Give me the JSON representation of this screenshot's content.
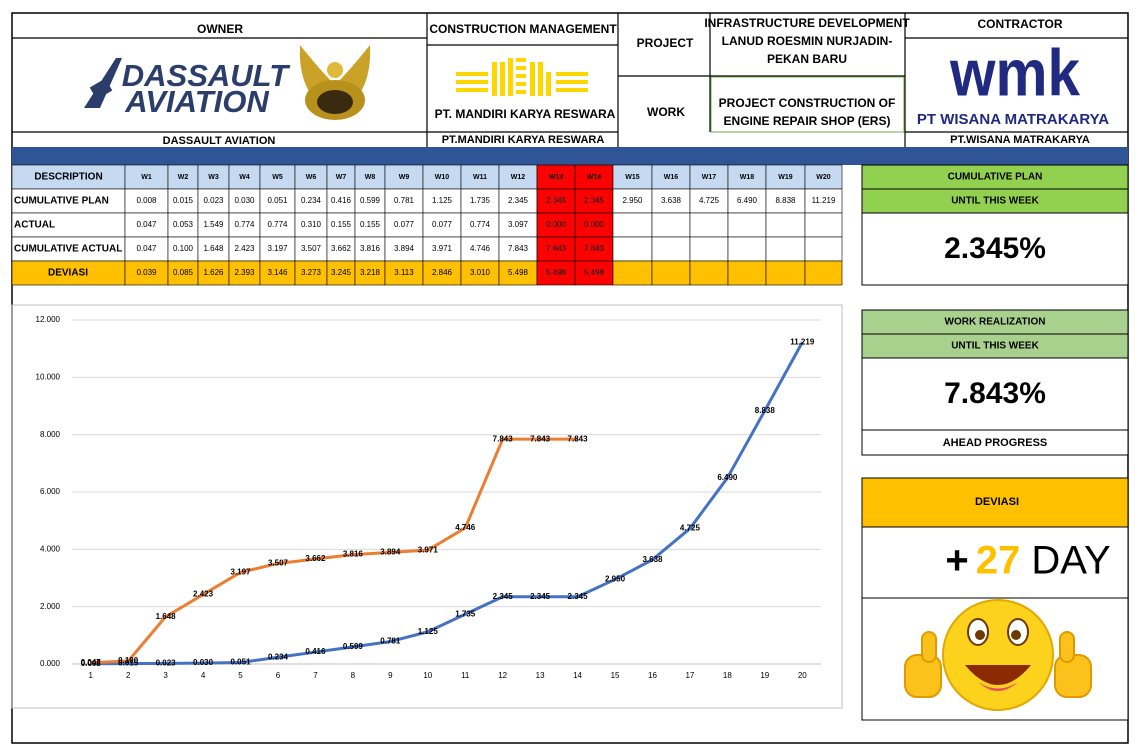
{
  "header": {
    "owner": "OWNER",
    "owner_logo": [
      "DASSAULT",
      "AVIATION"
    ],
    "owner_name": "DASSAULT AVIATION",
    "cm": "CONSTRUCTION MANAGEMENT",
    "cm_logo": "PT. MANDIRI KARYA RESWARA",
    "cm_name": "PT.MANDIRI KARYA RESWARA",
    "project_label": "PROJECT",
    "project": [
      "INFRASTRUCTURE DEVELOPMENT",
      "LANUD ROESMIN NURJADIN-",
      "PEKAN BARU"
    ],
    "work_label": "WORK",
    "work": [
      "PROJECT CONSTRUCTION OF",
      "ENGINE REPAIR SHOP (ERS)"
    ],
    "contractor": "CONTRACTOR",
    "contractor_logo": "wmk",
    "contractor_logo_name": "PT WISANA MATRAKARYA",
    "contractor_name": "PT.WISANA MATRAKARYA"
  },
  "table": {
    "columns": [
      "DESCRIPTION",
      "W1",
      "W2",
      "W3",
      "W4",
      "W5",
      "W6",
      "W7",
      "W8",
      "W9",
      "W10",
      "W11",
      "W12",
      "W13",
      "W14",
      "W15",
      "W16",
      "W17",
      "W18",
      "W19",
      "W20"
    ],
    "rows": [
      [
        "CUMULATIVE PLAN",
        "0.008",
        "0.015",
        "0.023",
        "0.030",
        "0.051",
        "0.234",
        "0.416",
        "0.599",
        "0.781",
        "1.125",
        "1.735",
        "2.345",
        "2.345",
        "2.345",
        "2.950",
        "3.638",
        "4.725",
        "6.490",
        "8.838",
        "11.219"
      ],
      [
        "ACTUAL",
        "0.047",
        "0.053",
        "1.549",
        "0.774",
        "0.774",
        "0.310",
        "0.155",
        "0.155",
        "0.077",
        "0.077",
        "0.774",
        "3.097",
        "0.000",
        "0.000"
      ],
      [
        "CUMULATIVE ACTUAL",
        "0.047",
        "0.100",
        "1.648",
        "2.423",
        "3.197",
        "3.507",
        "3.662",
        "3.816",
        "3.894",
        "3.971",
        "4.746",
        "7.843",
        "7.843",
        "7.843"
      ],
      [
        "DEVIASI",
        "0.039",
        "0.085",
        "1.626",
        "2.393",
        "3.146",
        "3.273",
        "3.245",
        "3.218",
        "3.113",
        "2.846",
        "3.010",
        "5.498",
        "5.498",
        "5.498"
      ]
    ]
  },
  "panels": {
    "plan": {
      "title": "CUMULATIVE PLAN",
      "subtitle": "UNTIL THIS WEEK",
      "value": "2.345%"
    },
    "realization": {
      "title": "WORK REALIZATION",
      "subtitle": "UNTIL THIS WEEK",
      "value": "7.843%",
      "note": "AHEAD PROGRESS"
    },
    "deviasi": {
      "title": "DEVIASI",
      "sign": "+",
      "days": "27",
      "unit": "DAY"
    }
  },
  "chart_data": {
    "type": "line",
    "categories": [
      "1",
      "2",
      "3",
      "4",
      "5",
      "6",
      "7",
      "8",
      "9",
      "10",
      "11",
      "12",
      "13",
      "14",
      "15",
      "16",
      "17",
      "18",
      "19",
      "20"
    ],
    "ylim": [
      0,
      12
    ],
    "yticks": [
      {
        "value": 0,
        "label": "0.000"
      },
      {
        "value": 2,
        "label": "2.000"
      },
      {
        "value": 4,
        "label": "4.000"
      },
      {
        "value": 6,
        "label": "6.000"
      },
      {
        "value": 8,
        "label": "8.000"
      },
      {
        "value": 10,
        "label": "10.000"
      },
      {
        "value": 12,
        "label": "12.000"
      }
    ],
    "grid": true,
    "series": [
      {
        "name": "CUMULATIVE PLAN",
        "color": "#4472c4",
        "values": [
          0.008,
          0.015,
          0.023,
          0.03,
          0.051,
          0.234,
          0.416,
          0.599,
          0.781,
          1.125,
          1.735,
          2.345,
          2.345,
          2.345,
          2.95,
          3.638,
          4.725,
          6.49,
          8.838,
          11.219
        ],
        "value_labels": [
          "0.008",
          "0.015",
          "0.023",
          "0.030",
          "0.051",
          "0.234",
          "0.416",
          "0.599",
          "0.781",
          "1.125",
          "1.735",
          "2.345",
          "2.345",
          "2.345",
          "2.950",
          "3.638",
          "4.725",
          "6.490",
          "8.838",
          "11.219"
        ]
      },
      {
        "name": "CUMULATIVE ACTUAL",
        "color": "#ed7d31",
        "values": [
          0.047,
          0.1,
          1.648,
          2.423,
          3.197,
          3.507,
          3.662,
          3.816,
          3.894,
          3.971,
          4.746,
          7.843,
          7.843,
          7.843,
          null,
          null,
          null,
          null,
          null,
          null
        ],
        "value_labels": [
          "0.047",
          "0.100",
          "1.648",
          "2.423",
          "3.197",
          "3.507",
          "3.662",
          "3.816",
          "3.894",
          "3.971",
          "4.746",
          "7.843",
          "7.843",
          "7.843",
          null,
          null,
          null,
          null,
          null,
          null
        ]
      }
    ]
  }
}
